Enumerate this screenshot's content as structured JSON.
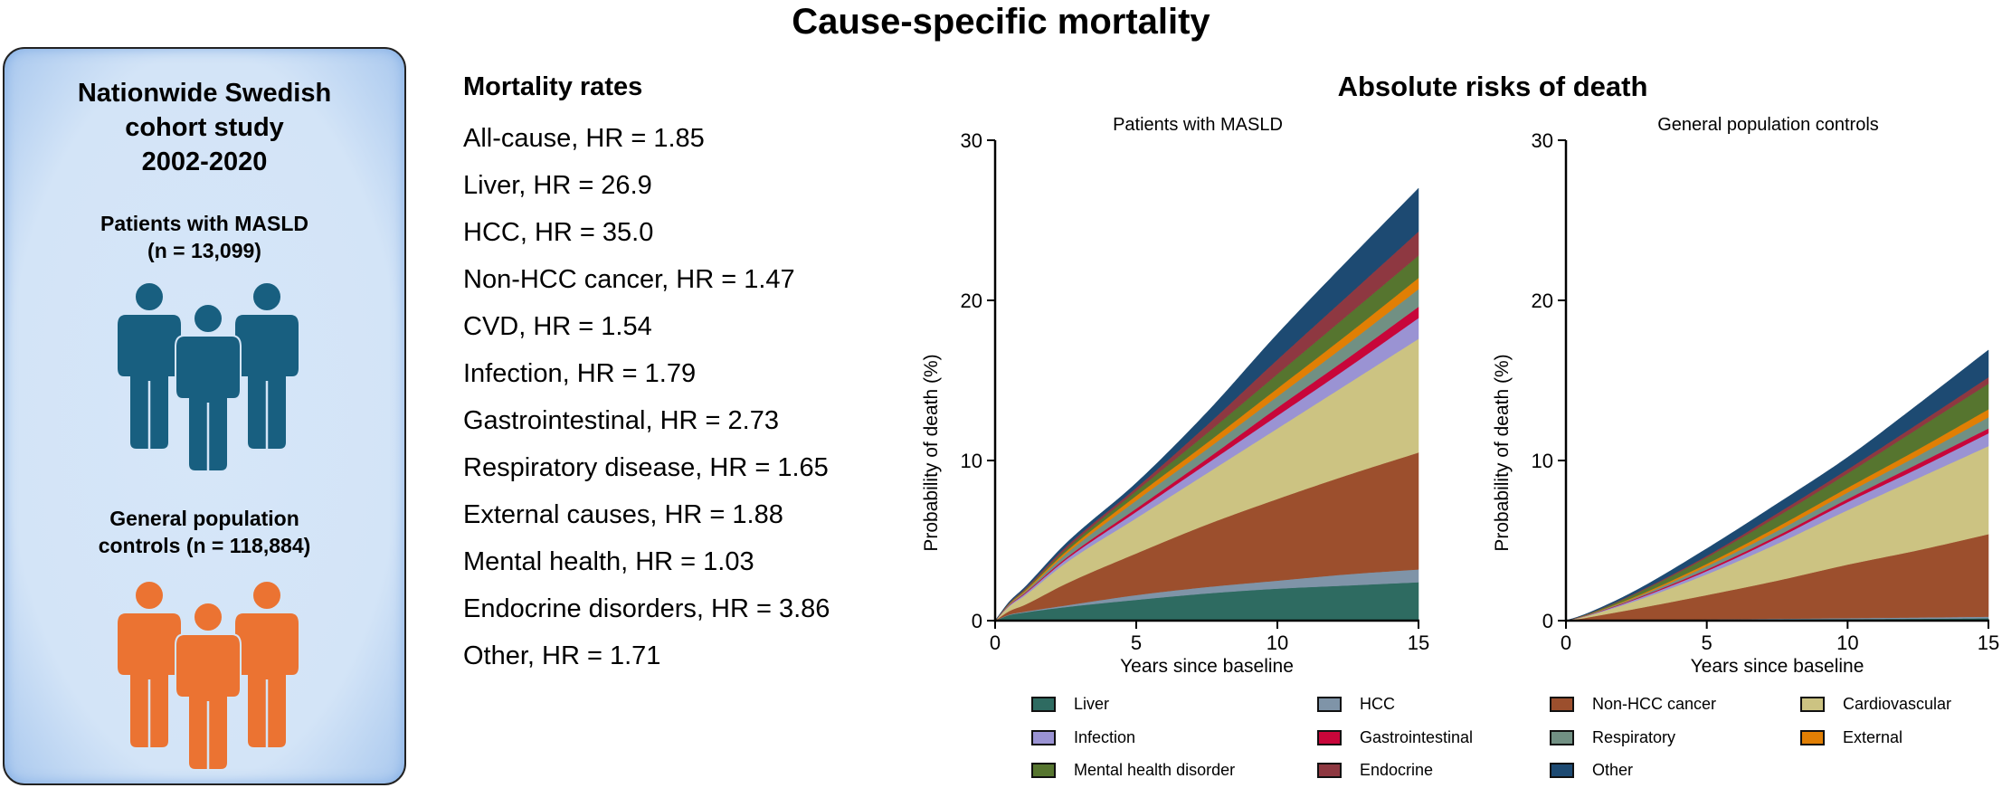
{
  "title": "Cause-specific mortality",
  "cohort_panel": {
    "title_lines": [
      "Nationwide Swedish",
      "cohort study",
      "2002-2020"
    ],
    "group1_lines": [
      "Patients with MASLD",
      "(n = 13,099)"
    ],
    "group2_lines": [
      "General population",
      "controls (n = 118,884)"
    ],
    "group1_color": "#185f80",
    "group2_color": "#eb7332",
    "icon1": "people-group-icon",
    "icon2": "people-group-icon"
  },
  "mortality_rates": {
    "heading": "Mortality rates",
    "items": [
      "All-cause, HR = 1.85",
      "Liver, HR = 26.9",
      "HCC, HR = 35.0",
      "Non-HCC cancer, HR = 1.47",
      "CVD, HR = 1.54",
      "Infection, HR = 1.79",
      "Gastrointestinal, HR = 2.73",
      "Respiratory disease, HR = 1.65",
      "External causes, HR = 1.88",
      "Mental health, HR = 1.03",
      "Endocrine disorders, HR = 3.86",
      "Other, HR = 1.71"
    ]
  },
  "absolute_risks_title": "Absolute risks of death",
  "chart_data": [
    {
      "type": "area",
      "stacked": true,
      "title": "Patients with MASLD",
      "xlabel": "Years since baseline",
      "ylabel": "Probability of death (%)",
      "xlim": [
        0,
        15
      ],
      "ylim": [
        0,
        30
      ],
      "xticks": [
        0,
        5,
        10,
        15
      ],
      "yticks": [
        0,
        10,
        20,
        30
      ],
      "x": [
        0,
        0.5,
        1,
        2.5,
        5,
        7.5,
        10,
        12.5,
        15
      ],
      "cumulative_tops": true,
      "series": [
        {
          "name": "Liver",
          "values": [
            0,
            0.35,
            0.5,
            0.85,
            1.3,
            1.7,
            2.0,
            2.2,
            2.4
          ]
        },
        {
          "name": "HCC",
          "values": [
            0,
            0.38,
            0.55,
            0.95,
            1.6,
            2.1,
            2.5,
            2.9,
            3.2
          ]
        },
        {
          "name": "Non-HCC cancer",
          "values": [
            0,
            0.6,
            0.95,
            2.3,
            4.2,
            6.0,
            7.6,
            9.1,
            10.5
          ]
        },
        {
          "name": "Cardiovascular",
          "values": [
            0,
            0.9,
            1.5,
            3.6,
            6.4,
            9.2,
            12.0,
            14.8,
            17.6
          ]
        },
        {
          "name": "Infection",
          "values": [
            0,
            0.95,
            1.6,
            3.8,
            6.8,
            9.8,
            12.8,
            15.8,
            18.9
          ]
        },
        {
          "name": "Gastrointestinal",
          "values": [
            0,
            0.98,
            1.65,
            3.9,
            7.0,
            10.1,
            13.3,
            16.4,
            19.6
          ]
        },
        {
          "name": "Respiratory",
          "values": [
            0,
            1.02,
            1.72,
            4.15,
            7.5,
            10.7,
            14.0,
            17.3,
            20.7
          ]
        },
        {
          "name": "External",
          "values": [
            0,
            1.05,
            1.78,
            4.3,
            7.8,
            11.1,
            14.5,
            17.9,
            21.4
          ]
        },
        {
          "name": "Mental health disorder",
          "values": [
            0,
            1.08,
            1.84,
            4.45,
            8.1,
            11.7,
            15.4,
            19.1,
            22.8
          ]
        },
        {
          "name": "Endocrine",
          "values": [
            0,
            1.12,
            1.9,
            4.6,
            8.3,
            12.2,
            16.3,
            20.3,
            24.3
          ]
        },
        {
          "name": "Other",
          "values": [
            0,
            1.18,
            2.0,
            4.8,
            8.6,
            13.0,
            17.9,
            22.5,
            27.0
          ]
        }
      ]
    },
    {
      "type": "area",
      "stacked": true,
      "title": "General population controls",
      "xlabel": "Years since baseline",
      "ylabel": "Probability of death (%)",
      "xlim": [
        0,
        15
      ],
      "ylim": [
        0,
        30
      ],
      "xticks": [
        0,
        5,
        10,
        15
      ],
      "yticks": [
        0,
        10,
        20,
        30
      ],
      "x": [
        0,
        0.5,
        1,
        2.5,
        5,
        7.5,
        10,
        12.5,
        15
      ],
      "cumulative_tops": true,
      "series": [
        {
          "name": "Liver",
          "values": [
            0,
            0.0,
            0.01,
            0.02,
            0.05,
            0.08,
            0.1,
            0.12,
            0.15
          ]
        },
        {
          "name": "HCC",
          "values": [
            0,
            0.0,
            0.01,
            0.03,
            0.08,
            0.12,
            0.16,
            0.2,
            0.25
          ]
        },
        {
          "name": "Non-HCC cancer",
          "values": [
            0,
            0.12,
            0.27,
            0.75,
            1.6,
            2.5,
            3.5,
            4.4,
            5.4
          ]
        },
        {
          "name": "Cardiovascular",
          "values": [
            0,
            0.18,
            0.42,
            1.25,
            2.9,
            4.8,
            6.9,
            8.9,
            10.9
          ]
        },
        {
          "name": "Infection",
          "values": [
            0,
            0.2,
            0.45,
            1.35,
            3.1,
            5.15,
            7.4,
            9.5,
            11.7
          ]
        },
        {
          "name": "Gastrointestinal",
          "values": [
            0,
            0.21,
            0.47,
            1.4,
            3.2,
            5.3,
            7.6,
            9.8,
            12.0
          ]
        },
        {
          "name": "Respiratory",
          "values": [
            0,
            0.22,
            0.5,
            1.47,
            3.4,
            5.6,
            8.0,
            10.3,
            12.7
          ]
        },
        {
          "name": "External",
          "values": [
            0,
            0.23,
            0.52,
            1.53,
            3.55,
            5.85,
            8.3,
            10.7,
            13.2
          ]
        },
        {
          "name": "Mental health disorder",
          "values": [
            0,
            0.25,
            0.56,
            1.7,
            3.95,
            6.5,
            9.2,
            12.0,
            14.8
          ]
        },
        {
          "name": "Endocrine",
          "values": [
            0,
            0.26,
            0.58,
            1.75,
            4.05,
            6.7,
            9.45,
            12.3,
            15.2
          ]
        },
        {
          "name": "Other",
          "values": [
            0,
            0.28,
            0.63,
            1.9,
            4.5,
            7.3,
            10.2,
            13.5,
            16.9
          ]
        }
      ]
    }
  ],
  "series_colors": {
    "Liver": "#2e6b61",
    "HCC": "#7f94a8",
    "Non-HCC cancer": "#9c4f2d",
    "Cardiovascular": "#ccc382",
    "Infection": "#9a93d3",
    "Gastrointestinal": "#c8063a",
    "Respiratory": "#719083",
    "External": "#e17f04",
    "Mental health disorder": "#56752f",
    "Endocrine": "#8e3841",
    "Other": "#1d4a72"
  },
  "legend": {
    "items": [
      {
        "label": "Liver",
        "col": 0,
        "row": 0
      },
      {
        "label": "HCC",
        "col": 1,
        "row": 0
      },
      {
        "label": "Non-HCC cancer",
        "col": 2,
        "row": 0
      },
      {
        "label": "Cardiovascular",
        "col": 3,
        "row": 0
      },
      {
        "label": "Infection",
        "col": 0,
        "row": 1
      },
      {
        "label": "Gastrointestinal",
        "col": 1,
        "row": 1
      },
      {
        "label": "Respiratory",
        "col": 2,
        "row": 1
      },
      {
        "label": "External",
        "col": 3,
        "row": 1
      },
      {
        "label": "Mental health disorder",
        "col": 0,
        "row": 2
      },
      {
        "label": "Endocrine",
        "col": 1,
        "row": 2
      },
      {
        "label": "Other",
        "col": 2,
        "row": 2
      }
    ]
  }
}
